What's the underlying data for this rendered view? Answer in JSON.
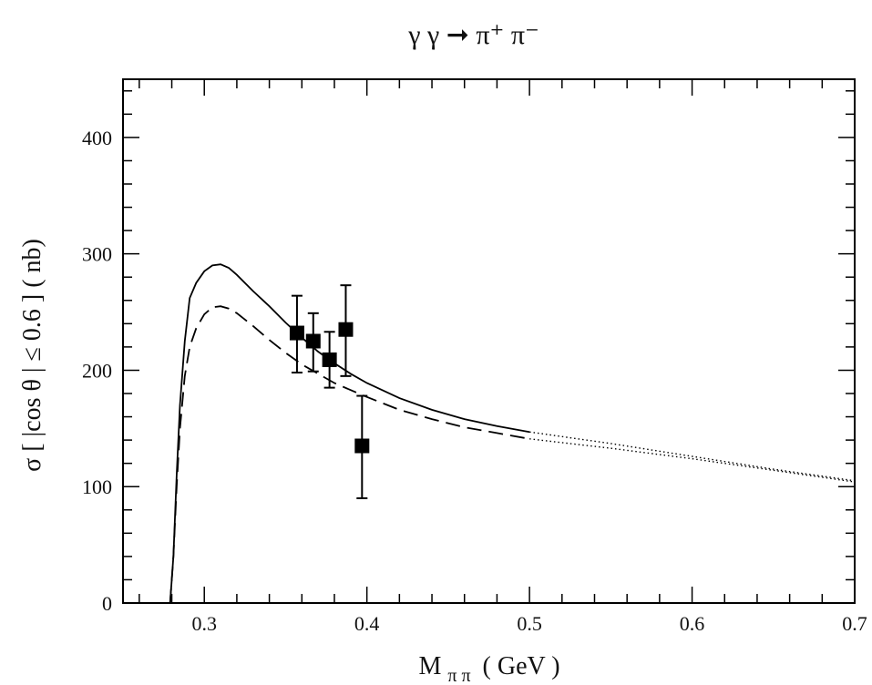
{
  "chart_data": {
    "type": "line",
    "title": "γ γ ➞ π⁺ π⁻",
    "xlabel": {
      "main": "M",
      "sub": "π π",
      "rest": "( GeV )"
    },
    "ylabel": "σ [ |cos θ | ≤ 0.6 ] ( nb)",
    "xlim": [
      0.25,
      0.7
    ],
    "ylim": [
      0,
      450
    ],
    "xticks": [
      {
        "value": 0.3,
        "label": "0.3"
      },
      {
        "value": 0.4,
        "label": "0.4"
      },
      {
        "value": 0.5,
        "label": "0.5"
      },
      {
        "value": 0.6,
        "label": "0.6"
      },
      {
        "value": 0.7,
        "label": "0.7"
      }
    ],
    "yticks": [
      {
        "value": 0,
        "label": "0"
      },
      {
        "value": 100,
        "label": "100"
      },
      {
        "value": 200,
        "label": "200"
      },
      {
        "value": 300,
        "label": "300"
      },
      {
        "value": 400,
        "label": "400"
      }
    ],
    "grid": false,
    "series": [
      {
        "style": "solid",
        "x": [
          0.279,
          0.281,
          0.283,
          0.285,
          0.288,
          0.291,
          0.295,
          0.3,
          0.305,
          0.31,
          0.315,
          0.32,
          0.33,
          0.34,
          0.35,
          0.36,
          0.37,
          0.38,
          0.39,
          0.4,
          0.42,
          0.44,
          0.46,
          0.48,
          0.5
        ],
        "y": [
          0,
          40,
          110,
          170,
          225,
          262,
          275,
          285,
          290,
          291,
          288,
          282,
          268,
          255,
          241,
          228,
          216,
          206,
          197,
          189,
          176,
          166,
          158,
          152,
          147
        ]
      },
      {
        "style": "dashed",
        "x": [
          0.279,
          0.281,
          0.283,
          0.285,
          0.288,
          0.291,
          0.295,
          0.3,
          0.305,
          0.31,
          0.315,
          0.32,
          0.33,
          0.34,
          0.35,
          0.36,
          0.37,
          0.38,
          0.39,
          0.4,
          0.42,
          0.44,
          0.46,
          0.48,
          0.5
        ],
        "y": [
          0,
          40,
          100,
          150,
          195,
          220,
          236,
          248,
          254,
          255,
          253,
          249,
          238,
          226,
          215,
          205,
          197,
          189,
          183,
          177,
          166,
          158,
          151,
          146,
          141
        ]
      },
      {
        "style": "dotted",
        "x": [
          0.5,
          0.55,
          0.6,
          0.65,
          0.7
        ],
        "y": [
          147,
          137,
          126,
          115,
          105
        ]
      },
      {
        "style": "dotted",
        "x": [
          0.5,
          0.55,
          0.6,
          0.65,
          0.7
        ],
        "y": [
          141,
          133,
          124,
          114,
          104
        ]
      }
    ],
    "points": [
      {
        "x": 0.357,
        "y": 232,
        "yerr_low": 198,
        "yerr_high": 264
      },
      {
        "x": 0.367,
        "y": 225,
        "yerr_low": 199,
        "yerr_high": 249
      },
      {
        "x": 0.377,
        "y": 209,
        "yerr_low": 185,
        "yerr_high": 233
      },
      {
        "x": 0.387,
        "y": 235,
        "yerr_low": 195,
        "yerr_high": 273
      },
      {
        "x": 0.397,
        "y": 135,
        "yerr_low": 90,
        "yerr_high": 178
      }
    ]
  }
}
